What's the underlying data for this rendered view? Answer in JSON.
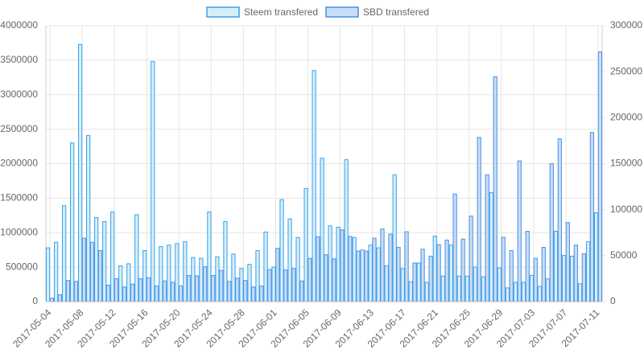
{
  "chart_data": {
    "type": "bar",
    "categories": [
      "2017-05-04",
      null,
      null,
      null,
      "2017-05-08",
      null,
      null,
      null,
      "2017-05-12",
      null,
      null,
      null,
      "2017-05-16",
      null,
      null,
      null,
      "2017-05-20",
      null,
      null,
      null,
      "2017-05-24",
      null,
      null,
      null,
      "2017-05-28",
      null,
      null,
      null,
      "2017-06-01",
      null,
      null,
      null,
      "2017-06-05",
      null,
      null,
      null,
      "2017-06-09",
      null,
      null,
      null,
      "2017-06-13",
      null,
      null,
      null,
      "2017-06-17",
      null,
      null,
      null,
      "2017-06-21",
      null,
      null,
      null,
      "2017-06-25",
      null,
      null,
      null,
      "2017-06-29",
      null,
      null,
      null,
      "2017-07-03",
      null,
      null,
      null,
      "2017-07-07",
      null,
      null,
      null,
      "2017-07-11"
    ],
    "series": [
      {
        "name": "Steem transfered",
        "color": "#36a2eb",
        "fill": "#d6eefa",
        "values": [
          780000,
          860000,
          1390000,
          2300000,
          3730000,
          2410000,
          1220000,
          1160000,
          1300000,
          520000,
          550000,
          1260000,
          740000,
          3480000,
          800000,
          820000,
          840000,
          870000,
          640000,
          630000,
          1300000,
          650000,
          1160000,
          690000,
          480000,
          540000,
          740000,
          1010000,
          500000,
          1480000,
          1200000,
          930000,
          1640000,
          3350000,
          2080000,
          1100000,
          1080000,
          2060000,
          930000,
          750000,
          820000,
          780000,
          520000,
          1840000,
          480000,
          290000,
          560000,
          280000,
          950000,
          370000,
          820000,
          370000,
          370000,
          500000,
          360000,
          1580000,
          490000,
          200000,
          280000,
          280000,
          380000,
          220000,
          330000,
          1020000,
          670000,
          660000,
          260000,
          870000,
          1290000
        ]
      },
      {
        "name": "SBD transfered",
        "color": "#4a90e2",
        "fill": "#c8ddf6",
        "axis": "y2",
        "values": [
          3800,
          7500,
          23000,
          22000,
          69000,
          64500,
          55500,
          18000,
          25000,
          16000,
          19000,
          25000,
          26000,
          17000,
          22500,
          21000,
          17000,
          28500,
          28000,
          38000,
          28500,
          34000,
          22000,
          25500,
          23000,
          16000,
          17000,
          35000,
          58000,
          34500,
          36000,
          22500,
          47000,
          70500,
          51000,
          46500,
          78000,
          71000,
          55000,
          55000,
          69000,
          79000,
          73500,
          59000,
          76000,
          42000,
          57000,
          49500,
          62000,
          67000,
          117000,
          68000,
          93000,
          178500,
          138000,
          244500,
          70000,
          55500,
          153000,
          76500,
          47000,
          59000,
          150000,
          177000,
          86000,
          61500,
          52000,
          184000,
          271500
        ]
      }
    ],
    "ylim": [
      0,
      4000000
    ],
    "yticks": [
      0,
      500000,
      1000000,
      1500000,
      2000000,
      2500000,
      3000000,
      3500000,
      4000000
    ],
    "y2lim": [
      0,
      300000
    ],
    "y2ticks": [
      0,
      50000,
      100000,
      150000,
      200000,
      250000,
      300000
    ],
    "grid": true,
    "legend": "top"
  }
}
